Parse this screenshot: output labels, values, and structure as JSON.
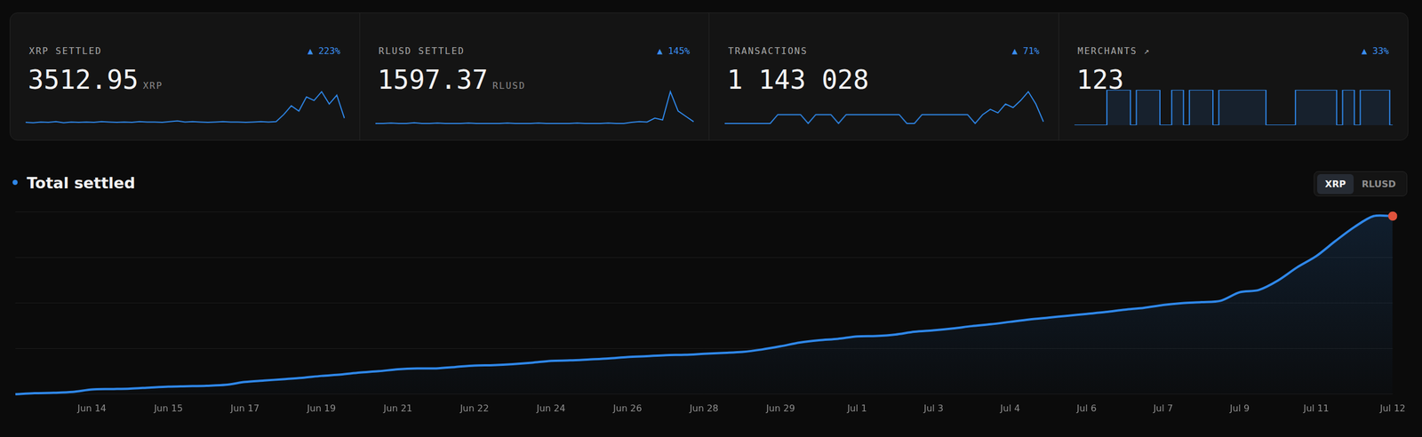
{
  "cards": [
    {
      "label": "XRP SETTLED",
      "value": "3512.95",
      "unit": "XRP",
      "change": "▲ 223%",
      "chart_data": {
        "type": "line",
        "color": "#2f87e8",
        "ylim": [
          0,
          100
        ],
        "grid": false,
        "tick_labels": false,
        "values": [
          8,
          7,
          9,
          8,
          10,
          7,
          9,
          8,
          9,
          8,
          10,
          9,
          8,
          9,
          8,
          10,
          9,
          9,
          8,
          10,
          12,
          9,
          10,
          9,
          8,
          9,
          10,
          9,
          9,
          8,
          9,
          10,
          9,
          10,
          30,
          55,
          40,
          80,
          70,
          95,
          60,
          85,
          20
        ]
      }
    },
    {
      "label": "RLUSD SETTLED",
      "value": "1597.37",
      "unit": "RLUSD",
      "change": "▲ 145%",
      "chart_data": {
        "type": "line",
        "color": "#2f87e8",
        "ylim": [
          0,
          100
        ],
        "grid": false,
        "tick_labels": false,
        "values": [
          5,
          5,
          6,
          5,
          5,
          7,
          5,
          5,
          6,
          5,
          5,
          5,
          6,
          5,
          5,
          5,
          5,
          6,
          5,
          5,
          5,
          6,
          5,
          5,
          5,
          5,
          6,
          5,
          5,
          5,
          6,
          5,
          5,
          8,
          10,
          9,
          20,
          15,
          95,
          40,
          25,
          10
        ]
      }
    },
    {
      "label": "TRANSACTIONS",
      "value": "1 143 028",
      "change": "▲ 71%",
      "chart_data": {
        "type": "line",
        "color": "#2f87e8",
        "ylim": [
          0,
          100
        ],
        "grid": false,
        "tick_labels": false,
        "values": [
          5,
          5,
          5,
          5,
          5,
          5,
          5,
          30,
          30,
          30,
          30,
          5,
          30,
          30,
          30,
          5,
          30,
          30,
          30,
          30,
          30,
          30,
          30,
          30,
          5,
          5,
          30,
          30,
          30,
          30,
          30,
          30,
          30,
          5,
          30,
          45,
          35,
          60,
          50,
          70,
          95,
          60,
          10
        ]
      }
    },
    {
      "label": "MERCHANTS ↗",
      "value": "123",
      "change": "▲ 33%",
      "chart_data": {
        "type": "line",
        "color": "#2f87e8",
        "ylim": [
          0,
          100
        ],
        "grid": false,
        "tick_labels": false,
        "line_style": "step",
        "values": [
          0,
          0,
          0,
          0,
          0,
          0,
          100,
          100,
          100,
          100,
          0,
          100,
          100,
          100,
          100,
          0,
          0,
          100,
          100,
          0,
          100,
          100,
          100,
          100,
          0,
          100,
          100,
          100,
          100,
          100,
          100,
          100,
          100,
          0,
          0,
          0,
          0,
          0,
          100,
          100,
          100,
          100,
          100,
          100,
          100,
          0,
          100,
          100,
          0,
          100,
          100,
          100,
          100,
          100,
          0
        ]
      }
    }
  ],
  "toggle": {
    "options": [
      "XRP",
      "RLUSD"
    ],
    "selected": "XRP"
  },
  "chart_data": {
    "type": "area",
    "title": "Total settled",
    "color": "#2f87e8",
    "categories": [
      null,
      null,
      null,
      null,
      "Jun 14",
      null,
      null,
      null,
      "Jun 15",
      null,
      null,
      null,
      "Jun 17",
      null,
      null,
      null,
      "Jun 19",
      null,
      null,
      null,
      "Jun 21",
      null,
      null,
      null,
      "Jun 22",
      null,
      null,
      null,
      "Jun 24",
      null,
      null,
      null,
      "Jun 26",
      null,
      null,
      null,
      "Jun 28",
      null,
      null,
      null,
      "Jun 29",
      null,
      null,
      null,
      "Jul 1",
      null,
      null,
      null,
      "Jul 3",
      null,
      null,
      null,
      "Jul 4",
      null,
      null,
      null,
      "Jul 6",
      null,
      null,
      null,
      "Jul 7",
      null,
      null,
      null,
      "Jul 9",
      null,
      null,
      null,
      "Jul 11",
      null,
      null,
      null,
      "Jul 12"
    ],
    "values": [
      0,
      19,
      28,
      46,
      93,
      102,
      111,
      130,
      148,
      157,
      167,
      185,
      241,
      269,
      296,
      324,
      361,
      389,
      426,
      454,
      491,
      509,
      509,
      537,
      565,
      574,
      593,
      621,
      658,
      667,
      685,
      704,
      732,
      750,
      769,
      778,
      797,
      815,
      834,
      880,
      945,
      1019,
      1065,
      1093,
      1139,
      1148,
      1176,
      1232,
      1260,
      1297,
      1343,
      1380,
      1427,
      1473,
      1510,
      1547,
      1584,
      1621,
      1667,
      1704,
      1760,
      1797,
      1816,
      1843,
      2010,
      2056,
      2242,
      2501,
      2723,
      3020,
      3298,
      3512.95,
      3512.95
    ],
    "ylim": [
      0,
      3600
    ],
    "yticks": [
      0,
      900,
      1800,
      2700,
      3600
    ],
    "grid": true,
    "tick_labels": "x"
  }
}
